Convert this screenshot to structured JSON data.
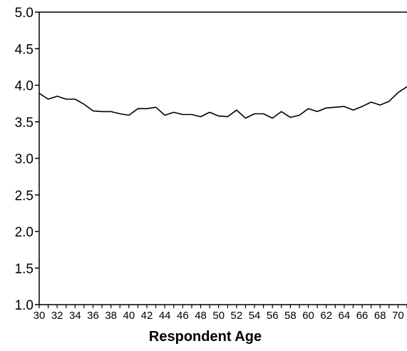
{
  "chart_data": {
    "type": "line",
    "title": "",
    "xlabel": "Respondent Age",
    "ylabel": "",
    "xlim": [
      30,
      71
    ],
    "ylim": [
      1.0,
      5.0
    ],
    "x_ticks": [
      30,
      32,
      34,
      36,
      38,
      40,
      42,
      44,
      46,
      48,
      50,
      52,
      54,
      56,
      58,
      60,
      62,
      64,
      66,
      68,
      70
    ],
    "x_tick_labels": [
      "30",
      "32",
      "34",
      "36",
      "38",
      "40",
      "42",
      "44",
      "46",
      "48",
      "50",
      "52",
      "54",
      "56",
      "58",
      "60",
      "62",
      "64",
      "66",
      "68",
      "70"
    ],
    "y_ticks": [
      1.0,
      1.5,
      2.0,
      2.5,
      3.0,
      3.5,
      4.0,
      4.5,
      5.0
    ],
    "y_tick_labels": [
      "1.0",
      "1.5",
      "2.0",
      "2.5",
      "3.0",
      "3.5",
      "4.0",
      "4.5",
      "5.0"
    ],
    "grid": false,
    "legend": "none",
    "series": [
      {
        "color": "#000000",
        "x": [
          30,
          31,
          32,
          33,
          34,
          35,
          36,
          37,
          38,
          39,
          40,
          41,
          42,
          43,
          44,
          45,
          46,
          47,
          48,
          49,
          50,
          51,
          52,
          53,
          54,
          55,
          56,
          57,
          58,
          59,
          60,
          61,
          62,
          63,
          64,
          65,
          66,
          67,
          68,
          69,
          70,
          71
        ],
        "values": [
          3.89,
          3.81,
          3.85,
          3.81,
          3.81,
          3.74,
          3.65,
          3.64,
          3.64,
          3.61,
          3.59,
          3.68,
          3.68,
          3.7,
          3.59,
          3.63,
          3.6,
          3.6,
          3.57,
          3.63,
          3.58,
          3.57,
          3.66,
          3.55,
          3.61,
          3.61,
          3.55,
          3.64,
          3.56,
          3.59,
          3.68,
          3.64,
          3.69,
          3.7,
          3.71,
          3.66,
          3.71,
          3.77,
          3.73,
          3.78,
          3.9,
          3.98
        ]
      }
    ]
  }
}
